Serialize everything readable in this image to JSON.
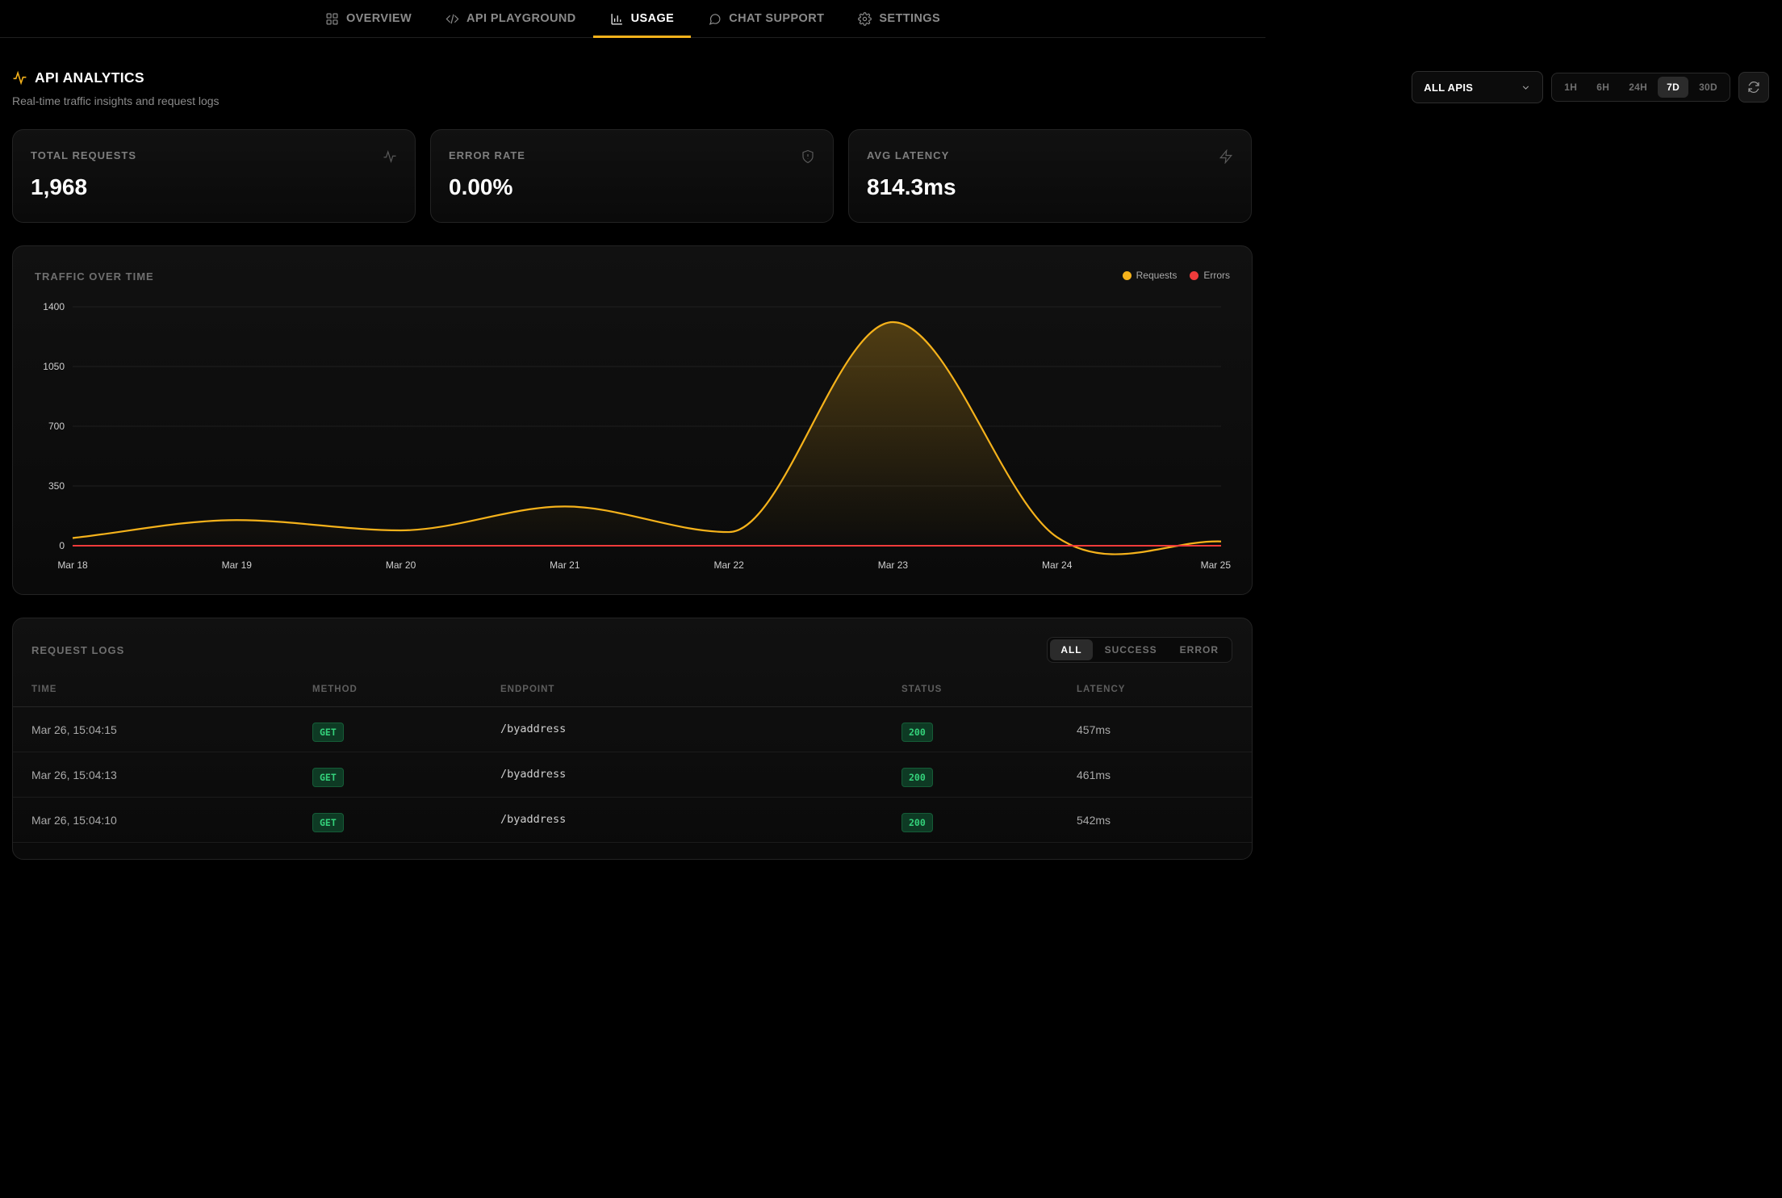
{
  "nav": {
    "items": [
      {
        "label": "OVERVIEW",
        "icon": "grid-icon",
        "active": false
      },
      {
        "label": "API PLAYGROUND",
        "icon": "code-icon",
        "active": false
      },
      {
        "label": "USAGE",
        "icon": "bar-chart-icon",
        "active": true
      },
      {
        "label": "CHAT SUPPORT",
        "icon": "chat-bubble-icon",
        "active": false
      },
      {
        "label": "SETTINGS",
        "icon": "gear-icon",
        "active": false
      }
    ]
  },
  "header": {
    "title": "API ANALYTICS",
    "subtitle": "Real-time traffic insights and request logs",
    "icon": "activity-icon",
    "api_select": "ALL APIS",
    "ranges": [
      "1H",
      "6H",
      "24H",
      "7D",
      "30D"
    ],
    "active_range": "7D"
  },
  "stats": [
    {
      "label": "TOTAL REQUESTS",
      "value": "1,968",
      "icon": "activity-icon"
    },
    {
      "label": "ERROR RATE",
      "value": "0.00%",
      "icon": "shield-icon"
    },
    {
      "label": "AVG LATENCY",
      "value": "814.3ms",
      "icon": "lightning-icon"
    }
  ],
  "chart": {
    "title": "TRAFFIC OVER TIME",
    "legend": [
      {
        "name": "Requests",
        "color": "#f5b21b"
      },
      {
        "name": "Errors",
        "color": "#ef3b3b"
      }
    ]
  },
  "chart_data": {
    "type": "area",
    "title": "TRAFFIC OVER TIME",
    "x": [
      "Mar 18",
      "Mar 19",
      "Mar 20",
      "Mar 21",
      "Mar 22",
      "Mar 23",
      "Mar 24",
      "Mar 25"
    ],
    "ylim": [
      0,
      1400
    ],
    "yticks": [
      0,
      350,
      700,
      1050,
      1400
    ],
    "grid": true,
    "legend_position": "top-right",
    "series": [
      {
        "name": "Requests",
        "color": "#f5b21b",
        "values": [
          45,
          150,
          90,
          230,
          80,
          1310,
          50,
          25
        ]
      },
      {
        "name": "Errors",
        "color": "#ef3b3b",
        "values": [
          0,
          0,
          0,
          0,
          0,
          0,
          0,
          0
        ]
      }
    ]
  },
  "logs": {
    "title": "REQUEST LOGS",
    "filters": [
      "ALL",
      "SUCCESS",
      "ERROR"
    ],
    "active_filter": "ALL",
    "columns": [
      "TIME",
      "METHOD",
      "ENDPOINT",
      "STATUS",
      "LATENCY"
    ],
    "rows": [
      {
        "time": "Mar 26, 15:04:15",
        "method": "GET",
        "endpoint": "/byaddress",
        "status": "200",
        "latency": "457ms"
      },
      {
        "time": "Mar 26, 15:04:13",
        "method": "GET",
        "endpoint": "/byaddress",
        "status": "200",
        "latency": "461ms"
      },
      {
        "time": "Mar 26, 15:04:10",
        "method": "GET",
        "endpoint": "/byaddress",
        "status": "200",
        "latency": "542ms"
      }
    ]
  }
}
